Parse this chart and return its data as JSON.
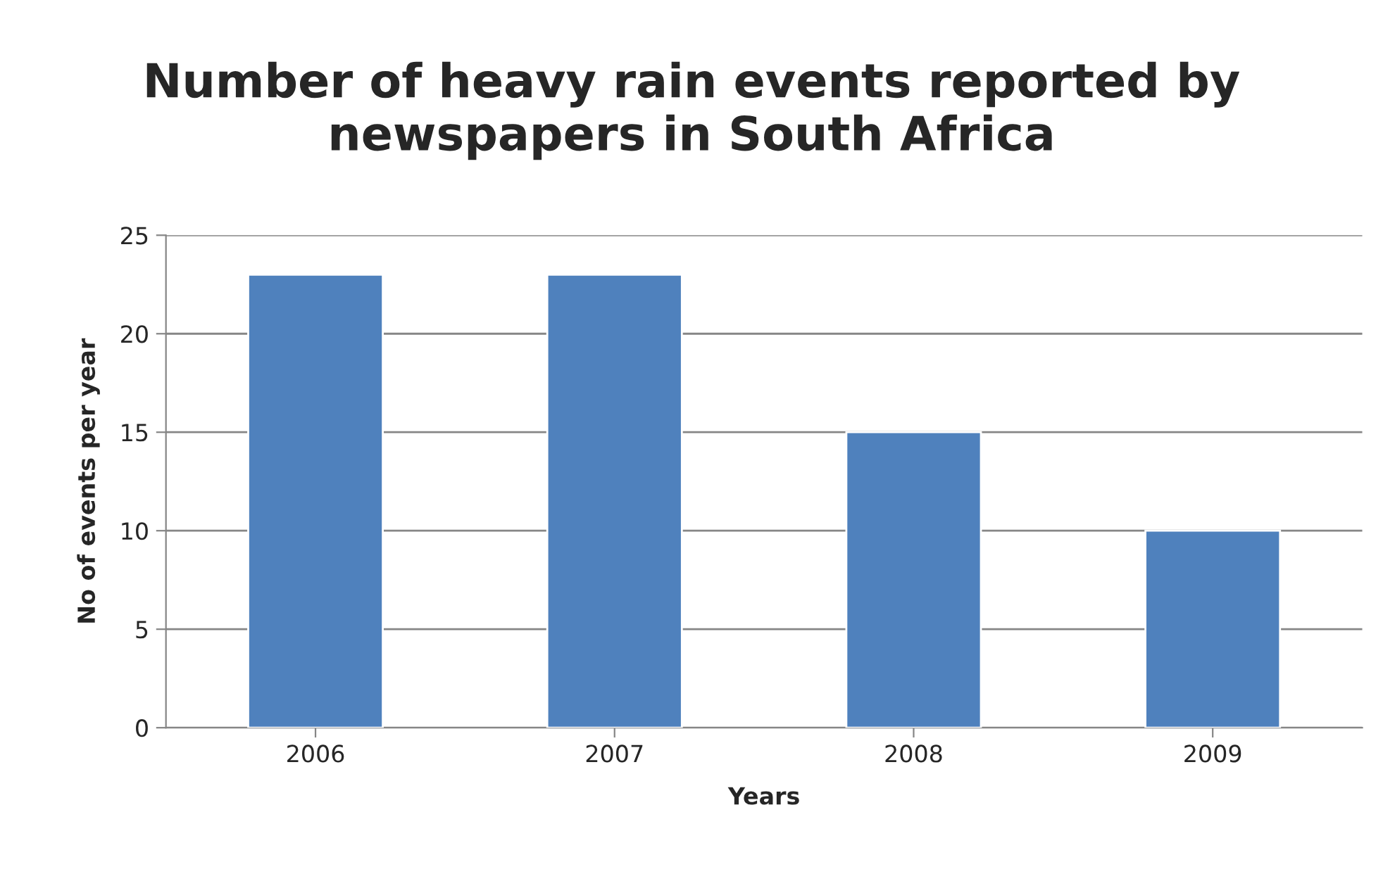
{
  "chart_data": {
    "type": "bar",
    "title": "Number of heavy rain events reported by newspapers in South Africa",
    "xlabel": "Years",
    "ylabel": "No of events per year",
    "categories": [
      "2006",
      "2007",
      "2008",
      "2009"
    ],
    "values": [
      23,
      23,
      15,
      10
    ],
    "color": "#4f81bd",
    "ylim": [
      0,
      25
    ],
    "yticks": [
      0,
      5,
      10,
      15,
      20,
      25
    ],
    "grid": "y",
    "legend": false
  }
}
